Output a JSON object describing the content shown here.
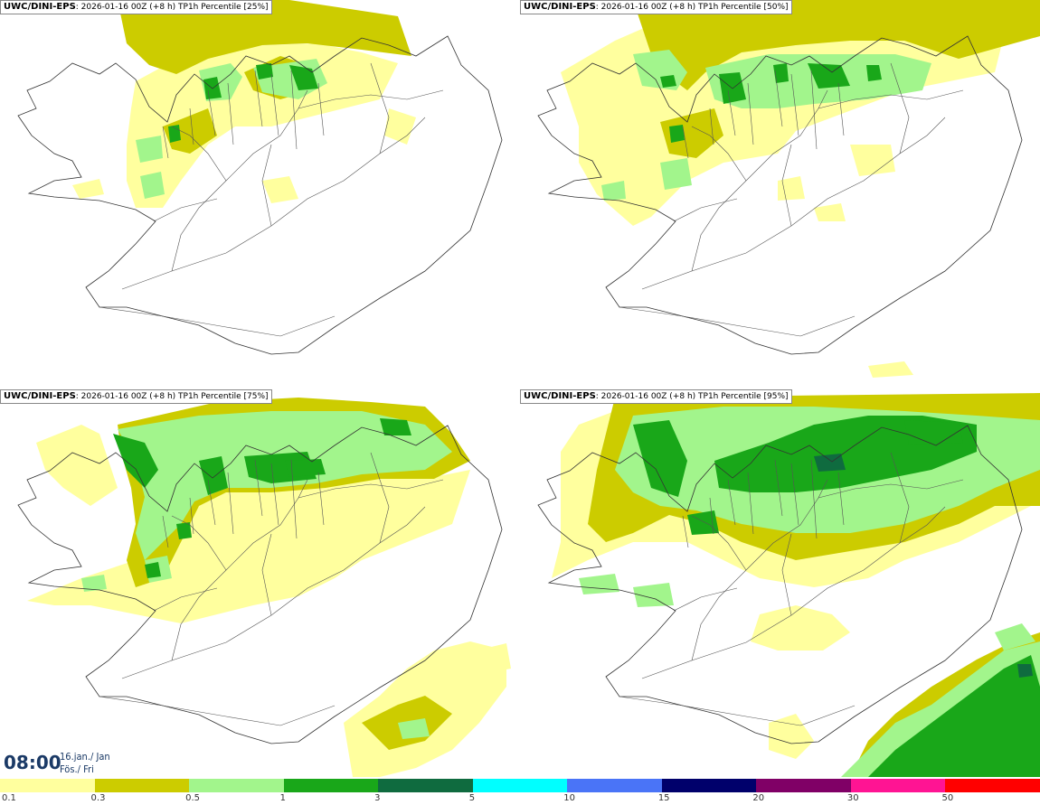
{
  "panels": [
    {
      "model": "UWC/DINI-EPS",
      "run": ": 2026-01-16 00Z (+8 h)",
      "field": "TP1h Percentile [25%]",
      "percentile": 25
    },
    {
      "model": "UWC/DINI-EPS",
      "run": ": 2026-01-16 00Z (+8 h)",
      "field": "TP1h Percentile [50%]",
      "percentile": 50
    },
    {
      "model": "UWC/DINI-EPS",
      "run": ": 2026-01-16 00Z (+8 h)",
      "field": "TP1h Percentile [75%]",
      "percentile": 75
    },
    {
      "model": "UWC/DINI-EPS",
      "run": ": 2026-01-16 00Z (+8 h)",
      "field": "TP1h Percentile [95%]",
      "percentile": 95
    }
  ],
  "valid_time": {
    "time": "08:00",
    "date_line1": "16.jan./ Jan",
    "date_line2": "Fös./ Fri"
  },
  "legend": {
    "colors": [
      "#ffff9e",
      "#cccc00",
      "#a2f58c",
      "#19a719",
      "#0f6b3f",
      "#00ffff",
      "#4a74f7",
      "#00006b",
      "#800066",
      "#ff1493",
      "#ff0000"
    ],
    "ticks": [
      "0.1",
      "0.3",
      "0.5",
      "1",
      "3",
      "5",
      "10",
      "15",
      "20",
      "30",
      "50"
    ]
  }
}
